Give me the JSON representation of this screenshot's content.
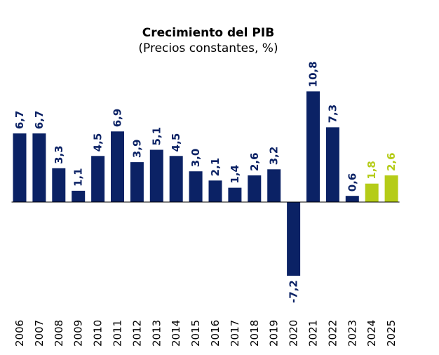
{
  "chart_data": {
    "type": "bar",
    "title": "Crecimiento del PIB",
    "subtitle": "(Precios constantes, %)",
    "categories": [
      "2006",
      "2007",
      "2008",
      "2009",
      "2010",
      "2011",
      "2012",
      "2013",
      "2014",
      "2015",
      "2016",
      "2017",
      "2018",
      "2019",
      "2020",
      "2021",
      "2022",
      "2023",
      "2024",
      "2025"
    ],
    "values": [
      6.7,
      6.7,
      3.3,
      1.1,
      4.5,
      6.9,
      3.9,
      5.1,
      4.5,
      3.0,
      2.1,
      1.4,
      2.6,
      3.2,
      -7.2,
      10.8,
      7.3,
      0.6,
      1.8,
      2.6
    ],
    "value_labels": [
      "6,7",
      "6,7",
      "3,3",
      "1,1",
      "4,5",
      "6,9",
      "3,9",
      "5,1",
      "4,5",
      "3,0",
      "2,1",
      "1,4",
      "2,6",
      "3,2",
      "-7,2",
      "10,8",
      "7,3",
      "0,6",
      "1,8",
      "2,6"
    ],
    "projection_categories": [
      "2024",
      "2025"
    ],
    "colors": {
      "actual": "#0b2265",
      "projection": "#b5cc18",
      "axis": "#000000"
    },
    "grid": false,
    "legend": "none"
  }
}
